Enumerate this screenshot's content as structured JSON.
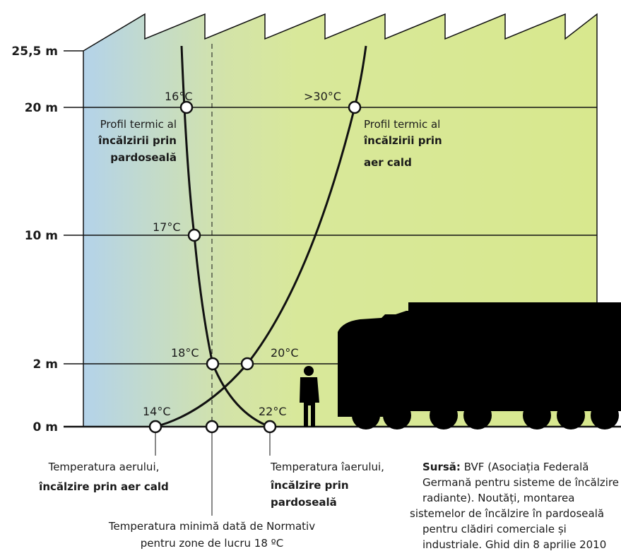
{
  "levels": [
    "25,5 m",
    "20 m",
    "10 m",
    "2 m",
    "0 m"
  ],
  "temperatures": {
    "t16": "16°C",
    "t17": "17°C",
    "t18": "18°C",
    "t20": "20°C",
    "t30": ">30°C",
    "t14": "14°C",
    "t22": "22°C"
  },
  "floor_profile": [
    "Profil termic al",
    "încălzirii prin",
    "pardoseală"
  ],
  "air_profile": [
    "Profil termic al",
    "încălzirii prin",
    "aer cald"
  ],
  "annotations": {
    "air_temp": [
      "Temperatura aerului,",
      "încălzire prin aer cald"
    ],
    "floor_temp": [
      "Temperatura îaerului,",
      "încălzire prin",
      "pardoseală"
    ],
    "norm": [
      "Temperatura minimă dată de Normativ",
      "pentru zone de lucru 18 ºC"
    ]
  },
  "source": {
    "label": "Sursă:",
    "lines": [
      "BVF (Asociația Federală",
      "Germană pentru sisteme de încălzire",
      "radiante). Noutăți, montarea",
      "sistemelor de încălzire în pardoseală",
      "pentru clădiri comerciale și",
      "industriale. Ghid din 8 aprilie 2010"
    ]
  }
}
